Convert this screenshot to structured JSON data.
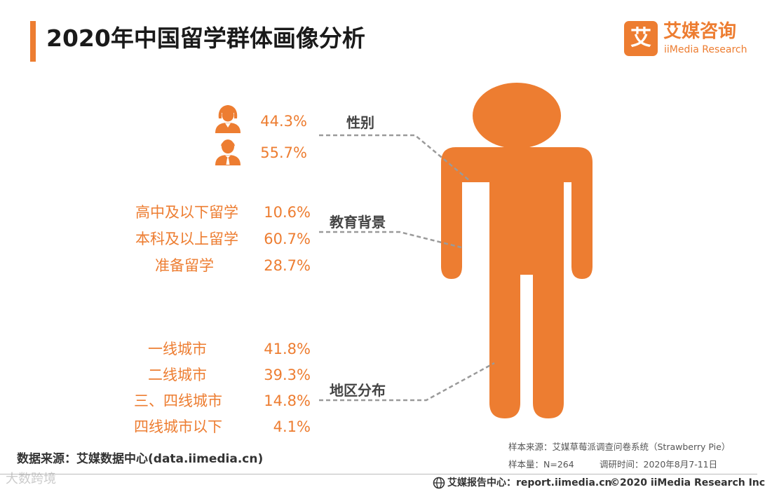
{
  "page": {
    "title": "2020年中国留学群体画像分析"
  },
  "logo": {
    "mark_char": "艾",
    "name_cn": "艾媒咨询",
    "name_en": "iiMedia Research"
  },
  "colors": {
    "accent": "#ED7D31",
    "figure": "#ED7D31",
    "leader_line": "#9A9A9A",
    "text_dark": "#1A1A1A"
  },
  "chart_data": {
    "type": "table",
    "groups": [
      {
        "name": "性别",
        "items": [
          {
            "icon": "female-user-icon",
            "label": "",
            "value": 44.3,
            "text": "44.3%"
          },
          {
            "icon": "male-user-icon",
            "label": "",
            "value": 55.7,
            "text": "55.7%"
          }
        ]
      },
      {
        "name": "教育背景",
        "items": [
          {
            "label": "高中及以下留学",
            "value": 10.6,
            "text": "10.6%"
          },
          {
            "label": "本科及以上留学",
            "value": 60.7,
            "text": "60.7%"
          },
          {
            "label": "准备留学",
            "value": 28.7,
            "text": "28.7%"
          }
        ]
      },
      {
        "name": "地区分布",
        "items": [
          {
            "label": "一线城市",
            "value": 41.8,
            "text": "41.8%"
          },
          {
            "label": "二线城市",
            "value": 39.3,
            "text": "39.3%"
          },
          {
            "label": "三、四线城市",
            "value": 14.8,
            "text": "14.8%"
          },
          {
            "label": "四线城市以下",
            "value": 4.1,
            "text": "4.1%"
          }
        ]
      }
    ],
    "unit": "%"
  },
  "footer": {
    "source_left": "数据来源：艾媒数据中心(data.iimedia.cn)",
    "sample_source": "样本来源：艾媒草莓派调查问卷系统（Strawberry Pie）",
    "sample_size": "样本量：N=264",
    "survey_time": "调研时间：2020年8月7-11日",
    "report_center": "艾媒报告中心：report.iimedia.cn",
    "copyright": "©2020  iiMedia Research  Inc",
    "watermark": "大数跨境"
  }
}
